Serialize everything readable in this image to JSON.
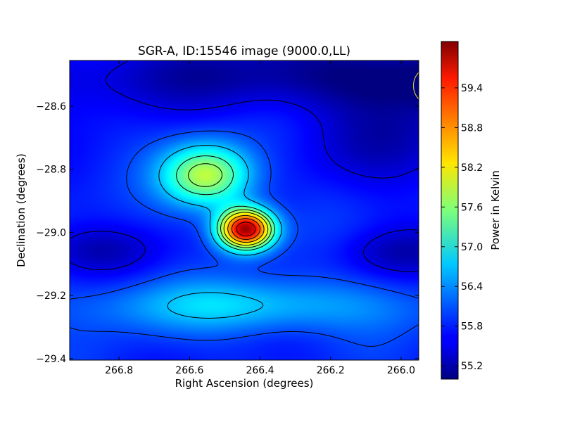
{
  "chart_data": {
    "type": "heatmap",
    "title": "SGR-A, ID:15546 image (9000.0,LL)",
    "xlabel": "Right Ascension (degrees)",
    "ylabel": "Declination (degrees)",
    "xlim": [
      266.94,
      265.95
    ],
    "ylim": [
      -29.405,
      -28.455
    ],
    "x_ticks": [
      266.8,
      266.6,
      266.4,
      266.2,
      266.0
    ],
    "x_tick_labels": [
      "266.8",
      "266.6",
      "266.4",
      "266.2",
      "266.0"
    ],
    "y_ticks": [
      -28.6,
      -28.8,
      -29.0,
      -29.2,
      -29.4
    ],
    "y_tick_labels": [
      "−28.6",
      "−28.8",
      "−29.0",
      "−29.2",
      "−29.4"
    ],
    "colorbar": {
      "label": "Power in Kelvin",
      "range": [
        55.0,
        60.1
      ],
      "ticks": [
        55.2,
        55.8,
        56.4,
        57.0,
        57.6,
        58.2,
        58.8,
        59.4
      ],
      "tick_labels": [
        "55.2",
        "55.8",
        "56.4",
        "57.0",
        "57.6",
        "58.2",
        "58.8",
        "59.4"
      ],
      "colormap": "jet"
    },
    "sources": [
      {
        "ra": 266.44,
        "dec": -28.99,
        "peak": 60.0,
        "sigma_ra": 0.055,
        "sigma_dec": 0.045
      },
      {
        "ra": 266.55,
        "dec": -28.82,
        "peak": 57.9,
        "sigma_ra": 0.09,
        "sigma_dec": 0.07
      }
    ],
    "background_level": 55.8,
    "contour_levels": [
      55.5,
      56.0,
      56.6,
      57.2,
      57.6,
      58.0,
      58.5,
      59.0,
      59.5
    ],
    "beam": {
      "ra": 265.91,
      "dec": -28.535,
      "radius_deg": 0.055,
      "color": "#c8c832"
    },
    "grid": false,
    "legend": "none"
  }
}
